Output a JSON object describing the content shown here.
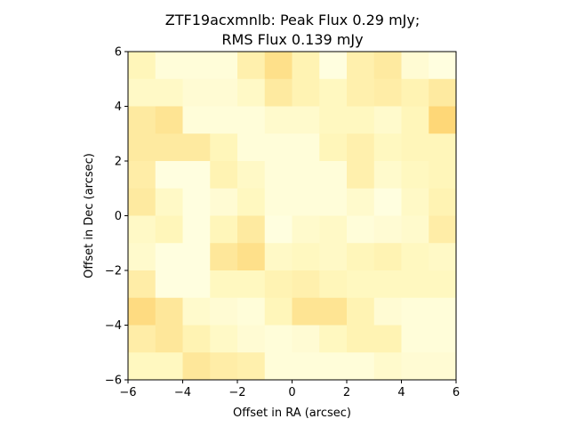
{
  "figure": {
    "title_line1": "ZTF19acxmnlb: Peak Flux 0.29 mJy;",
    "title_line2": "RMS Flux 0.139 mJy"
  },
  "chart_data": {
    "type": "heatmap",
    "title": "ZTF19acxmnlb: Peak Flux 0.29 mJy; RMS Flux 0.139 mJy",
    "xlabel": "Offset in RA (arcsec)",
    "ylabel": "Offset in Dec (arcsec)",
    "xlim": [
      -6,
      6
    ],
    "ylim": [
      -6,
      6
    ],
    "xticks": [
      -6,
      -4,
      -2,
      0,
      2,
      4,
      6
    ],
    "yticks": [
      -6,
      -4,
      -2,
      0,
      2,
      4,
      6
    ],
    "x_tick_labels": [
      "−6",
      "−4",
      "−2",
      "0",
      "2",
      "4",
      "6"
    ],
    "y_tick_labels": [
      "−6",
      "−4",
      "−2",
      "0",
      "2",
      "4",
      "6"
    ],
    "grid": false,
    "colormap": "YlOrBr",
    "color_stops": [
      "#ffffe5",
      "#fff7bc",
      "#fee391",
      "#fec44f"
    ],
    "nrows": 12,
    "ncols": 12,
    "cell_size_arcsec": 1,
    "values": [
      [
        0.35,
        0.1,
        0.1,
        0.1,
        0.45,
        0.7,
        0.4,
        0.05,
        0.45,
        0.55,
        0.15,
        0.05
      ],
      [
        0.25,
        0.25,
        0.15,
        0.15,
        0.25,
        0.55,
        0.4,
        0.3,
        0.45,
        0.5,
        0.4,
        0.55
      ],
      [
        0.55,
        0.65,
        0.1,
        0.1,
        0.1,
        0.2,
        0.2,
        0.3,
        0.3,
        0.2,
        0.35,
        0.8
      ],
      [
        0.55,
        0.55,
        0.55,
        0.35,
        0.1,
        0.1,
        0.1,
        0.35,
        0.45,
        0.3,
        0.35,
        0.35
      ],
      [
        0.5,
        0.05,
        0.05,
        0.4,
        0.25,
        0.1,
        0.1,
        0.1,
        0.45,
        0.2,
        0.3,
        0.35
      ],
      [
        0.55,
        0.25,
        0.05,
        0.15,
        0.3,
        0.1,
        0.1,
        0.1,
        0.2,
        0.05,
        0.25,
        0.4
      ],
      [
        0.25,
        0.35,
        0.05,
        0.35,
        0.55,
        0.05,
        0.2,
        0.25,
        0.1,
        0.15,
        0.2,
        0.5
      ],
      [
        0.2,
        0.05,
        0.05,
        0.6,
        0.7,
        0.25,
        0.3,
        0.25,
        0.35,
        0.4,
        0.3,
        0.25
      ],
      [
        0.5,
        0.05,
        0.05,
        0.3,
        0.3,
        0.4,
        0.45,
        0.35,
        0.3,
        0.3,
        0.3,
        0.3
      ],
      [
        0.75,
        0.6,
        0.2,
        0.15,
        0.1,
        0.35,
        0.65,
        0.65,
        0.4,
        0.15,
        0.1,
        0.1
      ],
      [
        0.5,
        0.6,
        0.4,
        0.25,
        0.15,
        0.1,
        0.15,
        0.3,
        0.4,
        0.4,
        0.1,
        0.1
      ],
      [
        0.3,
        0.3,
        0.6,
        0.5,
        0.45,
        0.1,
        0.1,
        0.1,
        0.1,
        0.2,
        0.15,
        0.15
      ]
    ]
  }
}
